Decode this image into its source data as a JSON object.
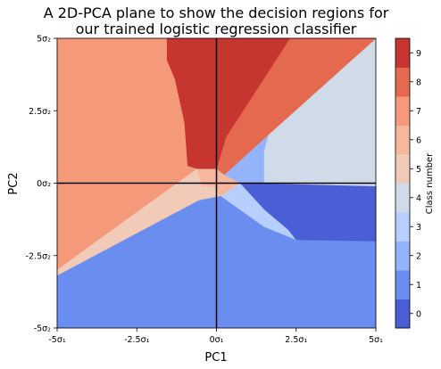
{
  "chart_data": {
    "type": "heatmap",
    "title_lines": [
      "A 2D-PCA plane to show the decision regions for",
      "our trained logistic regression classifier"
    ],
    "xlabel": "PC1",
    "ylabel": "PC2",
    "xlim": [
      -5,
      5
    ],
    "ylim": [
      -5,
      5
    ],
    "x_ticks": [
      {
        "value": -5,
        "label": "-5σ₁"
      },
      {
        "value": -2.5,
        "label": "-2.5σ₁"
      },
      {
        "value": 0,
        "label": "0σ₁"
      },
      {
        "value": 2.5,
        "label": "2.5σ₁"
      },
      {
        "value": 5,
        "label": "5σ₁"
      }
    ],
    "y_ticks": [
      {
        "value": 5,
        "label": "5σ₂"
      },
      {
        "value": 2.5,
        "label": "2.5σ₂"
      },
      {
        "value": 0,
        "label": "0σ₂"
      },
      {
        "value": -2.5,
        "label": "-2.5σ₂"
      },
      {
        "value": -5,
        "label": "-5σ₂"
      }
    ],
    "reference_lines": {
      "x": 0,
      "y": 0,
      "color": "#000000"
    },
    "colorbar": {
      "label": "Class number",
      "ticks": [
        "0",
        "1",
        "2",
        "3",
        "4",
        "5",
        "6",
        "7",
        "8",
        "9"
      ],
      "colors": [
        "#3b4cc0",
        "#6788ee",
        "#9abbff",
        "#c9d7f0",
        "#edd1c2",
        "#f7a889",
        "#e26952",
        "#b40426",
        "#c83a32",
        "#d24b40"
      ],
      "level_colors": [
        "#4a5fd6",
        "#6a8ef0",
        "#93b4fb",
        "#b8cffd",
        "#d0dbea",
        "#f1cbb8",
        "#f6b89c",
        "#f49a7a",
        "#e5694f",
        "#c73531"
      ]
    },
    "regions": [
      {
        "class": 6,
        "color": "#f49a7a",
        "polygon": [
          [
            -5,
            5
          ],
          [
            -1.55,
            5
          ],
          [
            -1.55,
            4.25
          ],
          [
            -1.3,
            3.6
          ],
          [
            -1.0,
            2.1
          ],
          [
            -0.9,
            0.6
          ],
          [
            -0.6,
            0.5
          ],
          [
            -5,
            -3.0
          ]
        ]
      },
      {
        "class": 4,
        "color": "#f1cbb8",
        "polygon": [
          [
            -5,
            -3.0
          ],
          [
            -0.6,
            0.5
          ],
          [
            -0.45,
            -0.1
          ],
          [
            -0.1,
            -0.1
          ],
          [
            0.15,
            -0.45
          ],
          [
            -0.55,
            -0.6
          ],
          [
            -5,
            -3.2
          ]
        ]
      },
      {
        "class": 5,
        "color": "#f6b89c",
        "polygon": [
          [
            -0.6,
            0.5
          ],
          [
            -0.05,
            0.5
          ],
          [
            0.15,
            0.4
          ],
          [
            0.75,
            0.0
          ],
          [
            0.15,
            -0.45
          ],
          [
            -0.1,
            -0.1
          ],
          [
            -0.45,
            -0.1
          ]
        ]
      },
      {
        "class": 0,
        "color": "#6a8ef0",
        "polygon": [
          [
            -5,
            -3.2
          ],
          [
            -0.55,
            -0.6
          ],
          [
            0.15,
            -0.45
          ],
          [
            0.6,
            -0.8
          ],
          [
            1.5,
            -1.5
          ],
          [
            2.5,
            -1.95
          ],
          [
            5,
            -2.0
          ],
          [
            5,
            -5
          ],
          [
            -5,
            -5
          ]
        ]
      },
      {
        "class": 3,
        "color": "#b8cffd",
        "polygon": [
          [
            0.15,
            -0.45
          ],
          [
            0.75,
            0.0
          ],
          [
            1.5,
            -0.9
          ],
          [
            2.25,
            -1.6
          ],
          [
            2.5,
            -1.95
          ],
          [
            1.5,
            -1.5
          ],
          [
            0.6,
            -0.8
          ]
        ]
      },
      {
        "class": 1,
        "color": "#4a5fd6",
        "polygon": [
          [
            0.75,
            0.0
          ],
          [
            1.5,
            0.0
          ],
          [
            5,
            -0.1
          ],
          [
            5,
            -2.0
          ],
          [
            2.5,
            -1.95
          ],
          [
            2.25,
            -1.6
          ],
          [
            1.5,
            -0.9
          ]
        ]
      },
      {
        "class": 2,
        "color": "#93b4fb",
        "polygon": [
          [
            0.25,
            0.3
          ],
          [
            0.75,
            0.0
          ],
          [
            1.5,
            0.0
          ],
          [
            1.5,
            1.1
          ],
          [
            1.65,
            1.7
          ]
        ]
      },
      {
        "class": 4,
        "color": "#d0dbea",
        "polygon": [
          [
            1.65,
            1.7
          ],
          [
            1.5,
            1.1
          ],
          [
            1.5,
            0.0
          ],
          [
            5,
            -0.1
          ],
          [
            5,
            5
          ]
        ]
      },
      {
        "class": 8,
        "color": "#e5694f",
        "polygon": [
          [
            0.25,
            0.3
          ],
          [
            1.65,
            1.7
          ],
          [
            5,
            5
          ],
          [
            2.3,
            5
          ],
          [
            0.3,
            1.6
          ],
          [
            0,
            0.5
          ]
        ]
      },
      {
        "class": 9,
        "color": "#c73531",
        "polygon": [
          [
            -1.55,
            5
          ],
          [
            2.3,
            5
          ],
          [
            0.3,
            1.6
          ],
          [
            0,
            0.5
          ],
          [
            -0.05,
            0.5
          ],
          [
            -0.6,
            0.5
          ],
          [
            -0.9,
            0.6
          ],
          [
            -1.0,
            2.1
          ],
          [
            -1.3,
            3.6
          ],
          [
            -1.55,
            4.25
          ]
        ]
      }
    ]
  }
}
